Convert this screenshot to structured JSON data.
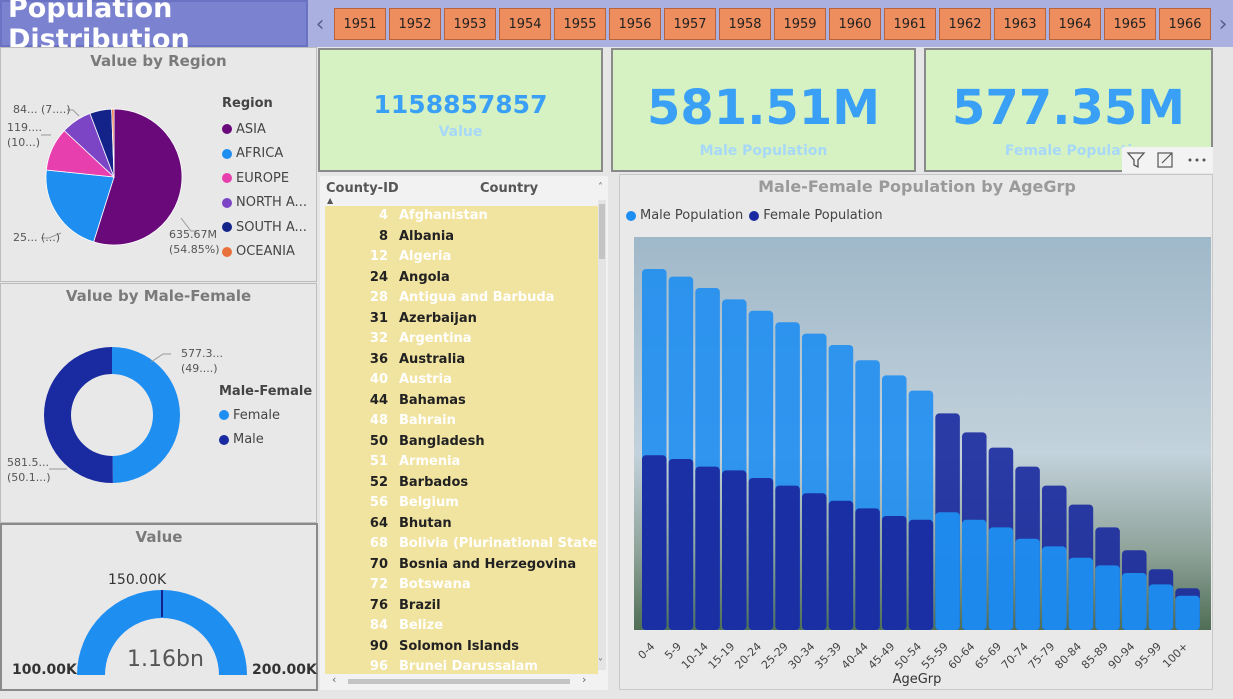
{
  "header": {
    "title": "Population Distribution"
  },
  "year_slicer": {
    "years": [
      "1951",
      "1952",
      "1953",
      "1954",
      "1955",
      "1956",
      "1957",
      "1958",
      "1959",
      "1960",
      "1961",
      "1962",
      "1963",
      "1964",
      "1965",
      "1966"
    ],
    "prev_arrow": "‹",
    "next_arrow": "›"
  },
  "kpis": [
    {
      "value": "1158857857",
      "label": "Value"
    },
    {
      "value": "581.51M",
      "label": "Male Population"
    },
    {
      "value": "577.35M",
      "label": "Female Populati"
    }
  ],
  "colors": {
    "asia": "#6a0a7a",
    "africa": "#1f8ef1",
    "europe": "#e83fae",
    "north_america": "#7b45c6",
    "south_america": "#14238a",
    "oceania": "#e8703a",
    "male": "#1f8ef1",
    "female": "#1a2aa0",
    "kpi_bg": "#d6f2c2",
    "slicer": "#ee8e5e"
  },
  "region_chart": {
    "title": "Value by Region",
    "legend_title": "Region",
    "legend": [
      "ASIA",
      "AFRICA",
      "EUROPE",
      "NORTH A...",
      "SOUTH A...",
      "OCEANIA"
    ],
    "labels": {
      "asia_line1": "635.67M",
      "asia_line2": "(54.85%)",
      "africa": "25... (...)",
      "europe_line1": "119....",
      "europe_line2": "(10...)",
      "north_america": "84... (7....)"
    }
  },
  "gender_chart": {
    "title": "Value by Male-Female",
    "legend_title": "Male-Female",
    "legend": [
      "Female",
      "Male"
    ],
    "labels": {
      "female_line1": "577.3...",
      "female_line2": "(49....)",
      "male_line1": "581.5...",
      "male_line2": "(50.1...)"
    }
  },
  "gauge": {
    "title": "Value",
    "min": "100.00K",
    "max": "200.00K",
    "target": "150.00K",
    "value": "1.16bn"
  },
  "table": {
    "headers": {
      "id": "County-ID",
      "country": "Country"
    },
    "rows": [
      {
        "id": "4",
        "name": "Afghanistan"
      },
      {
        "id": "8",
        "name": "Albania"
      },
      {
        "id": "12",
        "name": "Algeria"
      },
      {
        "id": "24",
        "name": "Angola"
      },
      {
        "id": "28",
        "name": "Antigua and Barbuda"
      },
      {
        "id": "31",
        "name": "Azerbaijan"
      },
      {
        "id": "32",
        "name": "Argentina"
      },
      {
        "id": "36",
        "name": "Australia"
      },
      {
        "id": "40",
        "name": "Austria"
      },
      {
        "id": "44",
        "name": "Bahamas"
      },
      {
        "id": "48",
        "name": "Bahrain"
      },
      {
        "id": "50",
        "name": "Bangladesh"
      },
      {
        "id": "51",
        "name": "Armenia"
      },
      {
        "id": "52",
        "name": "Barbados"
      },
      {
        "id": "56",
        "name": "Belgium"
      },
      {
        "id": "64",
        "name": "Bhutan"
      },
      {
        "id": "68",
        "name": "Bolivia (Plurinational State of)"
      },
      {
        "id": "70",
        "name": "Bosnia and Herzegovina"
      },
      {
        "id": "72",
        "name": "Botswana"
      },
      {
        "id": "76",
        "name": "Brazil"
      },
      {
        "id": "84",
        "name": "Belize"
      },
      {
        "id": "90",
        "name": "Solomon Islands"
      },
      {
        "id": "96",
        "name": "Brunei Darussalam"
      }
    ]
  },
  "chart_data": [
    {
      "type": "pie",
      "title": "Value by Region",
      "categories": [
        "ASIA",
        "AFRICA",
        "EUROPE",
        "NORTH A...",
        "SOUTH A...",
        "OCEANIA"
      ],
      "values": [
        54.85,
        21.8,
        10.3,
        7.3,
        5.2,
        0.55
      ]
    },
    {
      "type": "pie",
      "title": "Value by Male-Female",
      "categories": [
        "Female",
        "Male"
      ],
      "values": [
        49.8,
        50.2
      ]
    },
    {
      "type": "area",
      "title": "Male-Female Population by AgeGrp",
      "xlabel": "AgeGrp",
      "categories": [
        "0-4",
        "5-9",
        "10-14",
        "15-19",
        "20-24",
        "25-29",
        "30-34",
        "35-39",
        "40-44",
        "45-49",
        "50-54",
        "55-59",
        "60-64",
        "65-69",
        "70-74",
        "75-79",
        "80-84",
        "85-89",
        "90-94",
        "95-99",
        "100+"
      ],
      "series": [
        {
          "name": "Male Population",
          "values": [
            95,
            93,
            90,
            87,
            84,
            81,
            78,
            75,
            71,
            67,
            63,
            31,
            29,
            27,
            24,
            22,
            19,
            17,
            15,
            12,
            9
          ]
        },
        {
          "name": "Female Population",
          "values": [
            46,
            45,
            43,
            42,
            40,
            38,
            36,
            34,
            32,
            30,
            29,
            57,
            52,
            48,
            43,
            38,
            33,
            27,
            21,
            16,
            11
          ]
        }
      ]
    }
  ]
}
